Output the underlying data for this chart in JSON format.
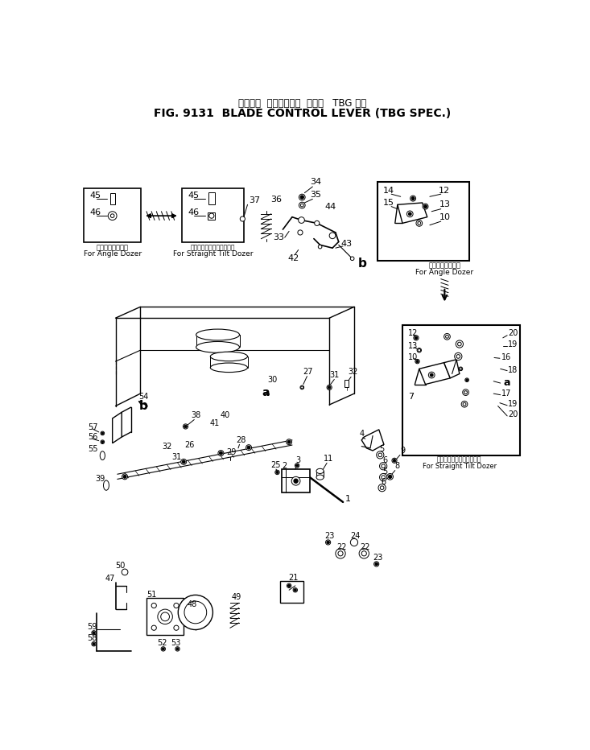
{
  "title_jp": "ブレード  コントロール  レバー   TBG 仕様",
  "title_en": "FIG. 9131  BLADE CONTROL LEVER (TBG SPEC.)",
  "bg": "#ffffff",
  "fg": "#000000",
  "fw": 7.33,
  "fh": 9.32,
  "lbl_angle_jp": "アングルドーザ用",
  "lbl_angle_en": "For Angle Dozer",
  "lbl_straight_jp": "ストレートチルトドーザ用",
  "lbl_straight_en": "For Straight Tilt Dozer"
}
